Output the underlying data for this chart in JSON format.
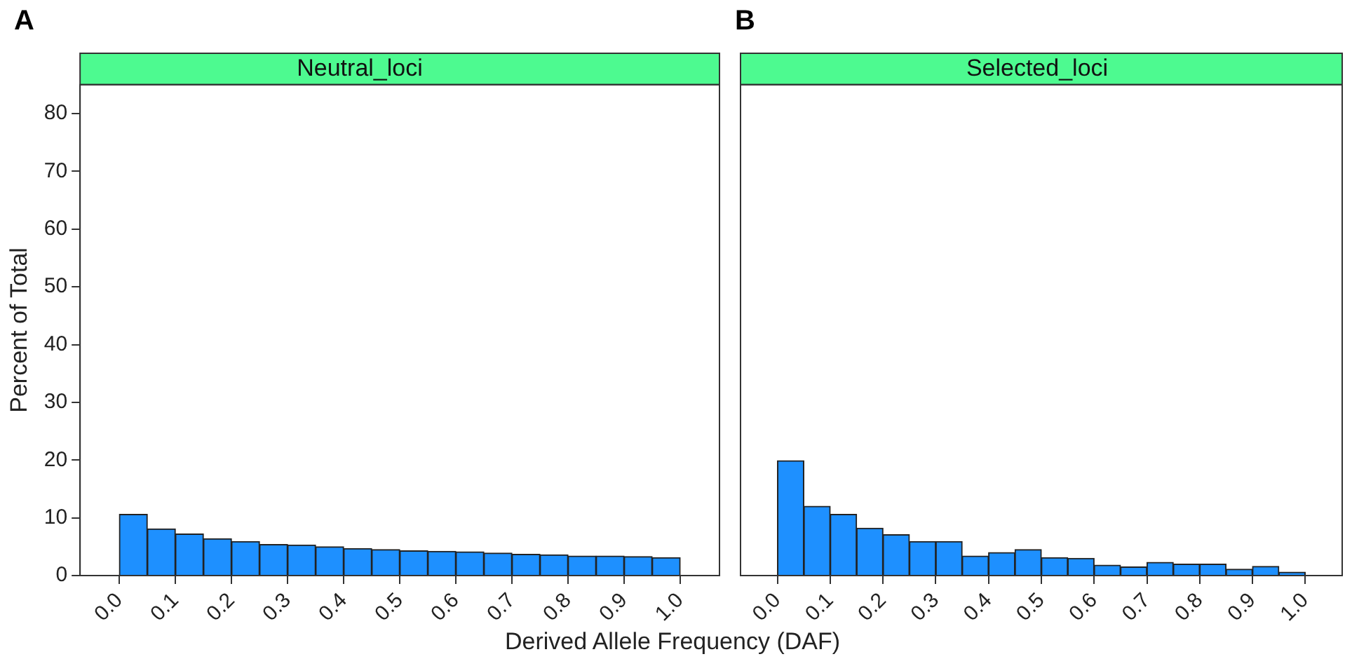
{
  "chart_data": [
    {
      "type": "histogram",
      "title": "Neutral_loci",
      "xlabel": "Derived Allele Frequency (DAF)",
      "ylabel": "Percent of Total",
      "annotations": [
        "A"
      ],
      "bins": [
        0,
        0.05,
        0.1,
        0.15,
        0.2,
        0.25,
        0.3,
        0.35,
        0.4,
        0.45,
        0.5,
        0.55,
        0.6,
        0.65,
        0.7,
        0.75,
        0.8,
        0.85,
        0.9,
        0.95,
        1
      ],
      "values": [
        10.6,
        8.1,
        7.2,
        6.4,
        5.9,
        5.4,
        5.3,
        5.0,
        4.7,
        4.5,
        4.3,
        4.2,
        4.1,
        3.9,
        3.7,
        3.6,
        3.4,
        3.4,
        3.3,
        3.1
      ],
      "color": "#1e90ff",
      "xlim": [
        -0.07,
        1.07
      ],
      "ylim": [
        0,
        85
      ],
      "xticks": [
        {
          "value": 0,
          "label": "0.0"
        },
        {
          "value": 0.1,
          "label": "0.1"
        },
        {
          "value": 0.2,
          "label": "0.2"
        },
        {
          "value": 0.3,
          "label": "0.3"
        },
        {
          "value": 0.4,
          "label": "0.4"
        },
        {
          "value": 0.5,
          "label": "0.5"
        },
        {
          "value": 0.6,
          "label": "0.6"
        },
        {
          "value": 0.7,
          "label": "0.7"
        },
        {
          "value": 0.8,
          "label": "0.8"
        },
        {
          "value": 0.9,
          "label": "0.9"
        },
        {
          "value": 1,
          "label": "1.0"
        }
      ],
      "yticks": [
        0,
        10,
        20,
        30,
        40,
        50,
        60,
        70,
        80
      ],
      "grid": false,
      "legend": false
    },
    {
      "type": "histogram",
      "title": "Selected_loci",
      "annotations": [
        "B"
      ],
      "bins": [
        0,
        0.05,
        0.1,
        0.15,
        0.2,
        0.25,
        0.3,
        0.35,
        0.4,
        0.45,
        0.5,
        0.55,
        0.6,
        0.65,
        0.7,
        0.75,
        0.8,
        0.85,
        0.9,
        0.95,
        1
      ],
      "values": [
        19.9,
        12.0,
        10.6,
        8.2,
        7.1,
        5.9,
        5.9,
        3.4,
        4.0,
        4.5,
        3.1,
        3.0,
        1.8,
        1.5,
        2.3,
        2.0,
        2.0,
        1.1,
        1.6,
        0.6
      ],
      "color": "#1e90ff",
      "xlim": [
        -0.07,
        1.07
      ],
      "ylim": [
        0,
        85
      ],
      "xticks": [
        {
          "value": 0,
          "label": "0.0"
        },
        {
          "value": 0.1,
          "label": "0.1"
        },
        {
          "value": 0.2,
          "label": "0.2"
        },
        {
          "value": 0.3,
          "label": "0.3"
        },
        {
          "value": 0.4,
          "label": "0.4"
        },
        {
          "value": 0.5,
          "label": "0.5"
        },
        {
          "value": 0.6,
          "label": "0.6"
        },
        {
          "value": 0.7,
          "label": "0.7"
        },
        {
          "value": 0.8,
          "label": "0.8"
        },
        {
          "value": 0.9,
          "label": "0.9"
        },
        {
          "value": 1,
          "label": "1.0"
        }
      ],
      "yticks": [
        0,
        10,
        20,
        30,
        40,
        50,
        60,
        70,
        80
      ],
      "tick_labels": "x",
      "grid": false,
      "legend": false
    }
  ]
}
